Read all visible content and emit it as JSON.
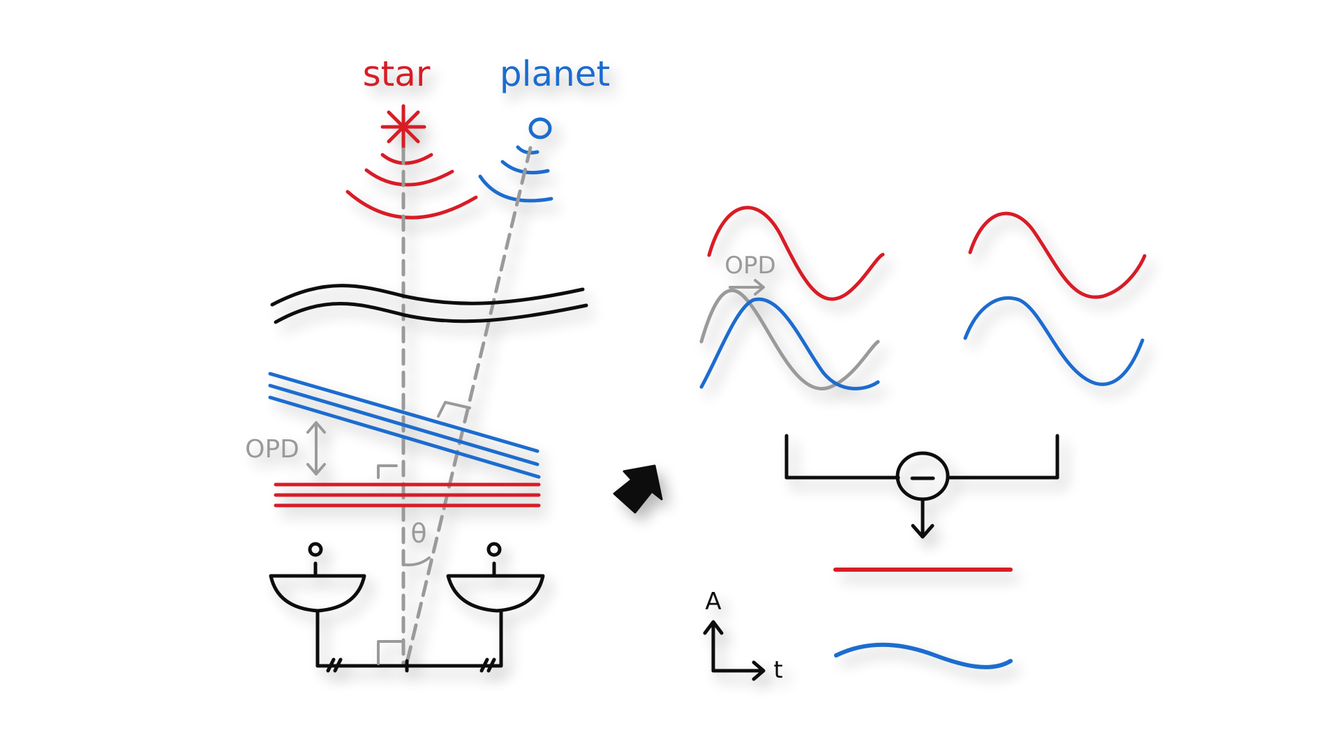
{
  "labels": {
    "star": "star",
    "planet": "planet",
    "opd_left": "OPD",
    "opd_wave": "OPD",
    "theta": "θ",
    "minus": "−",
    "axis_y": "A",
    "axis_x": "t"
  },
  "colors": {
    "star": "#d81e26",
    "planet": "#1f6ccf",
    "path": "#9a9a9a",
    "ink": "#111111",
    "background": "#ffffff"
  },
  "icons": {
    "star_symbol": "asterisk-star-icon",
    "planet_symbol": "circle-planet-icon",
    "arrow": "right-arrow-icon",
    "detector": "minus-circle-icon"
  }
}
